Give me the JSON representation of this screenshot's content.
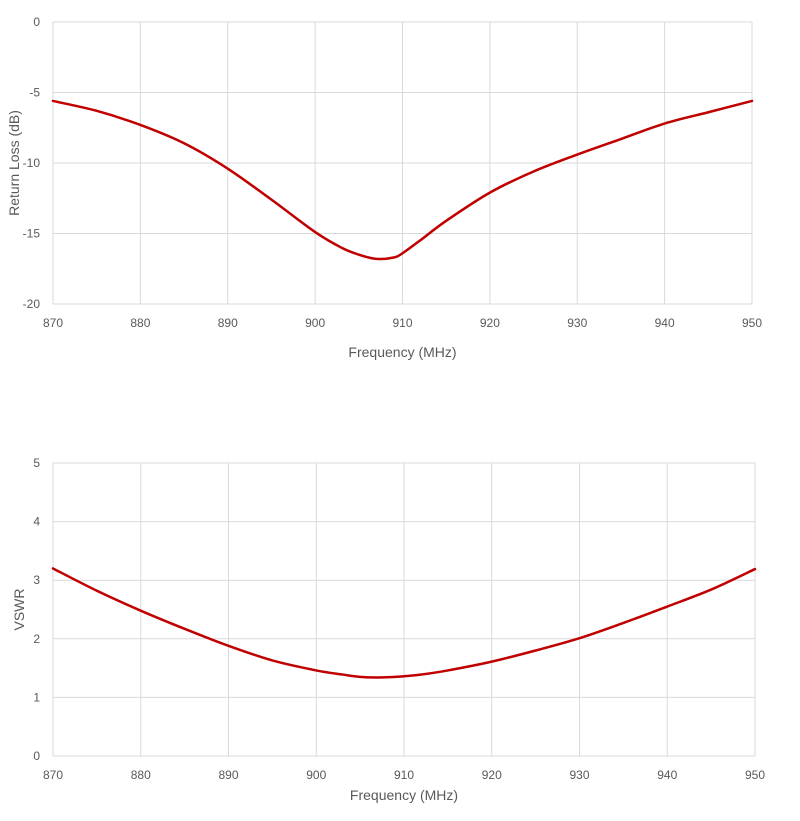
{
  "chart_data": [
    {
      "type": "line",
      "title": "",
      "xlabel": "Frequency (MHz)",
      "ylabel": "Return Loss (dB)",
      "xlim": [
        870,
        950
      ],
      "ylim": [
        -20,
        0
      ],
      "xticks": [
        "870",
        "880",
        "890",
        "900",
        "910",
        "920",
        "930",
        "940",
        "950"
      ],
      "yticks": [
        "0",
        "-5",
        "-10",
        "-15",
        "-20"
      ],
      "grid": true,
      "legend": "none",
      "series_color": "#C00000",
      "series": [
        {
          "x": [
            870,
            875,
            880,
            885,
            890,
            895,
            900,
            903,
            905,
            907,
            909,
            910,
            912,
            915,
            920,
            925,
            930,
            935,
            940,
            945,
            950
          ],
          "y": [
            -5.6,
            -6.3,
            -7.3,
            -8.6,
            -10.4,
            -12.6,
            -14.9,
            -16.0,
            -16.5,
            -16.8,
            -16.7,
            -16.4,
            -15.5,
            -14.1,
            -12.1,
            -10.6,
            -9.4,
            -8.3,
            -7.2,
            -6.4,
            -5.6
          ]
        }
      ]
    },
    {
      "type": "line",
      "title": "",
      "xlabel": "Frequency (MHz)",
      "ylabel": "VSWR",
      "xlim": [
        870,
        950
      ],
      "ylim": [
        0,
        5
      ],
      "xticks": [
        "870",
        "880",
        "890",
        "900",
        "910",
        "920",
        "930",
        "940",
        "950"
      ],
      "yticks": [
        "5",
        "4",
        "3",
        "2",
        "1",
        "0"
      ],
      "grid": true,
      "legend": "none",
      "series_color": "#C00000",
      "series": [
        {
          "x": [
            870,
            875,
            880,
            885,
            890,
            895,
            900,
            903,
            905,
            907,
            909,
            910,
            912,
            915,
            920,
            925,
            930,
            935,
            940,
            945,
            950
          ],
          "y": [
            3.2,
            2.82,
            2.48,
            2.17,
            1.88,
            1.63,
            1.46,
            1.39,
            1.35,
            1.34,
            1.35,
            1.36,
            1.39,
            1.46,
            1.61,
            1.8,
            2.01,
            2.27,
            2.55,
            2.84,
            3.19
          ]
        }
      ]
    }
  ]
}
